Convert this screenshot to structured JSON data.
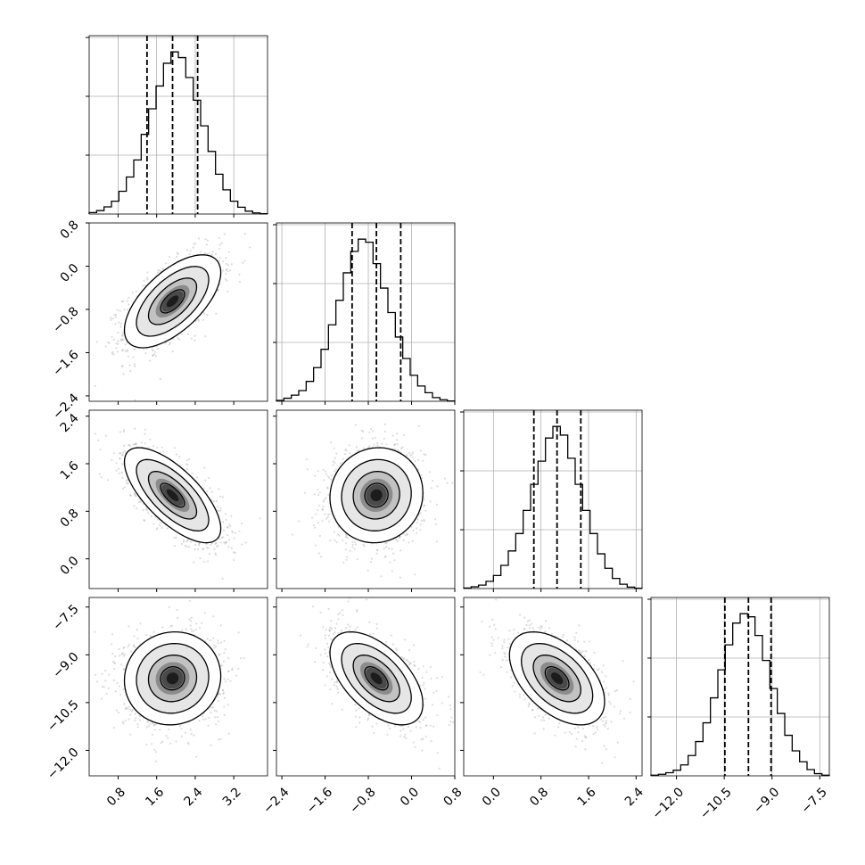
{
  "chart_data": {
    "type": "corner",
    "parameters": [
      {
        "axis_range": [
          0.2,
          3.9
        ],
        "ticks": [
          0.8,
          1.6,
          2.4,
          3.2
        ],
        "tick_labels": [
          "0.8",
          "1.6",
          "2.4",
          "3.2"
        ],
        "quantiles": [
          1.4,
          1.93,
          2.45
        ],
        "mean": 1.93,
        "sd": 0.5,
        "histogram": [
          0.5,
          1.2,
          2.5,
          4.5,
          8.0,
          13.0,
          19.0,
          28.0,
          37.0,
          45.0,
          53.0,
          57.0,
          55.0,
          48.0,
          40.0,
          31.0,
          22.0,
          14.0,
          8.5,
          4.5,
          2.4,
          1.0,
          0.4,
          0.1
        ]
      },
      {
        "axis_range": [
          -2.5,
          0.8
        ],
        "ticks": [
          -2.4,
          -1.6,
          -0.8,
          0.0,
          0.8
        ],
        "tick_labels": [
          "−2.4",
          "−1.6",
          "−0.8",
          "0.0",
          "0.8"
        ],
        "quantiles": [
          -1.1,
          -0.65,
          -0.2
        ],
        "mean": -0.65,
        "sd": 0.43,
        "histogram": [
          0.3,
          1.0,
          2.0,
          3.5,
          6.5,
          11.0,
          17.0,
          25.0,
          33.0,
          42.0,
          49.0,
          53.0,
          52.0,
          45.0,
          37.0,
          29.0,
          21.0,
          14.0,
          8.5,
          5.0,
          2.8,
          1.2,
          0.5,
          0.1
        ]
      },
      {
        "axis_range": [
          -0.5,
          2.5
        ],
        "ticks": [
          0.0,
          0.8,
          1.6,
          2.4
        ],
        "tick_labels": [
          "0.0",
          "0.8",
          "1.6",
          "2.4"
        ],
        "quantiles": [
          0.68,
          1.07,
          1.47
        ],
        "mean": 1.07,
        "sd": 0.4,
        "histogram": [
          0.2,
          0.6,
          1.2,
          2.5,
          4.5,
          8.0,
          13.0,
          19.0,
          27.0,
          36.0,
          44.0,
          52.0,
          56.0,
          53.0,
          45.0,
          36.0,
          27.0,
          19.0,
          12.0,
          7.0,
          3.5,
          1.5,
          0.5,
          0.1
        ]
      },
      {
        "axis_range": [
          -12.8,
          -7.2
        ],
        "ticks": [
          -12.0,
          -10.5,
          -9.0,
          -7.5
        ],
        "tick_labels": [
          "−12.0",
          "−10.5",
          "−9.0",
          "−7.5"
        ],
        "quantiles": [
          -10.48,
          -9.74,
          -9.03
        ],
        "mean": -9.74,
        "sd": 0.73,
        "histogram": [
          0.2,
          0.5,
          1.0,
          1.8,
          3.5,
          6.5,
          11.0,
          17.0,
          25.0,
          34.0,
          42.0,
          49.0,
          52.0,
          51.0,
          45.0,
          37.0,
          28.0,
          20.0,
          13.0,
          8.0,
          4.5,
          2.0,
          0.7,
          0.2
        ]
      }
    ],
    "correlations": [
      [
        1.0,
        0.62,
        -0.7,
        0.05
      ],
      [
        0.62,
        1.0,
        0.05,
        -0.55
      ],
      [
        -0.7,
        0.05,
        1.0,
        -0.5
      ],
      [
        0.05,
        -0.55,
        -0.5,
        1.0
      ]
    ],
    "contour_levels_sigma": [
      0.5,
      1.0,
      1.5,
      2.0
    ],
    "quantile_line_style": "dashed",
    "scatter_points_per_panel": 1400,
    "grid": true
  }
}
